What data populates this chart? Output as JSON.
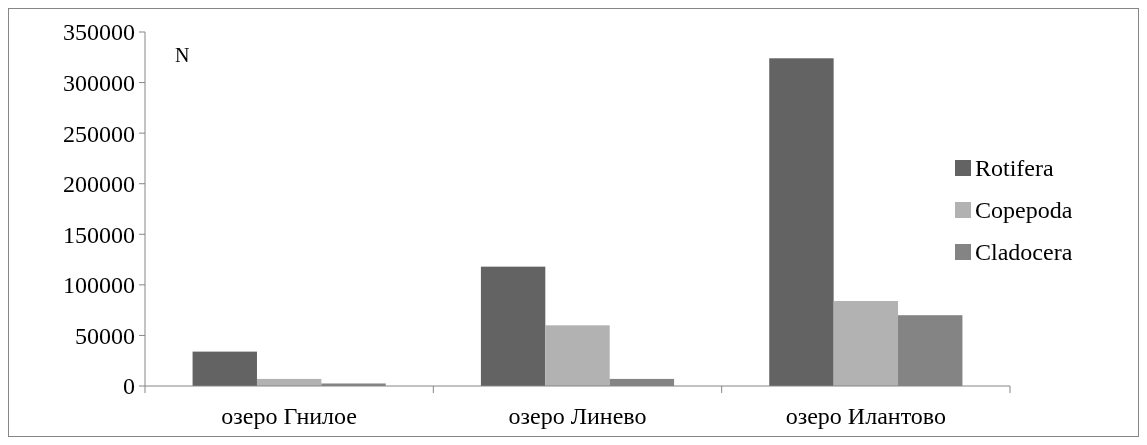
{
  "chart_data": {
    "type": "bar",
    "ylabel": "N",
    "categories": [
      "озеро Гнилое",
      "озеро Линево",
      "озеро Илантово"
    ],
    "series": [
      {
        "name": "Rotifera",
        "color": "#636363",
        "values": [
          34000,
          118000,
          324000
        ]
      },
      {
        "name": "Copepoda",
        "color": "#b2b2b2",
        "values": [
          7000,
          60000,
          84000
        ]
      },
      {
        "name": "Cladocera",
        "color": "#848484",
        "values": [
          2500,
          7000,
          70000
        ]
      }
    ],
    "ylim": [
      0,
      350000
    ],
    "yticks": [
      0,
      50000,
      100000,
      150000,
      200000,
      250000,
      300000,
      350000
    ],
    "legend": "right",
    "grid": false
  }
}
